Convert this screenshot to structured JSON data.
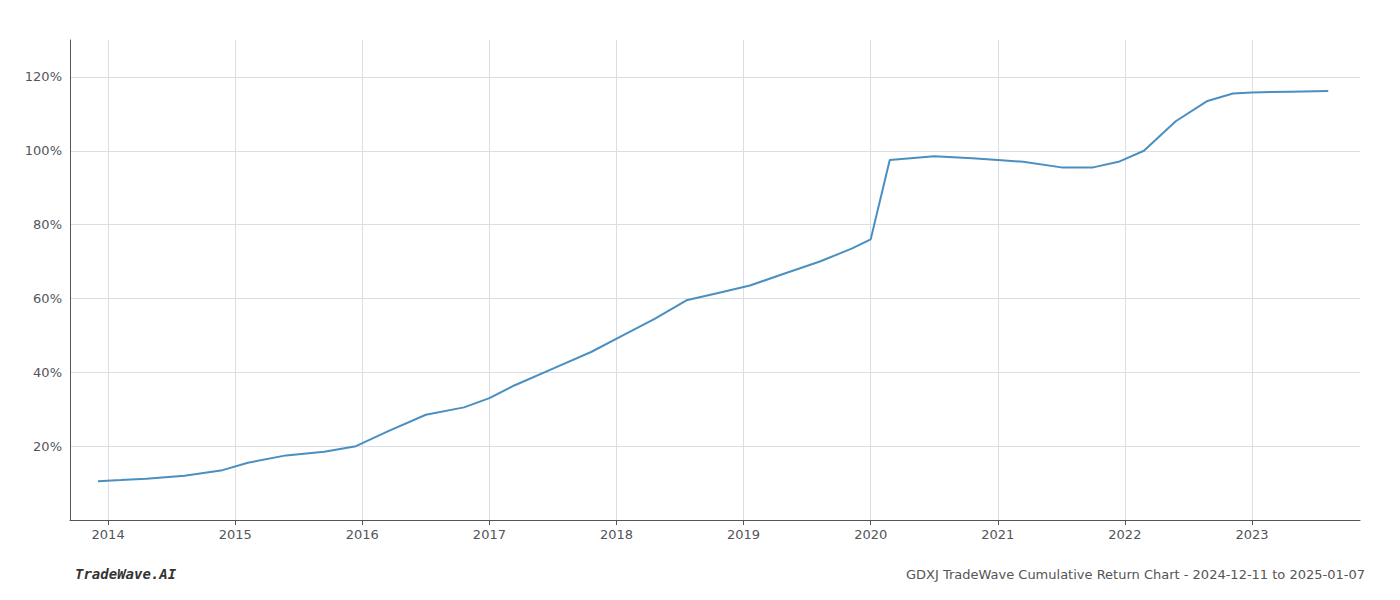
{
  "chart_data": {
    "type": "line",
    "title": "GDXJ TradeWave Cumulative Return Chart - 2024-12-11 to 2025-01-07",
    "annotations": [
      "TradeWave.AI"
    ],
    "x": [
      2013.92,
      2014.1,
      2014.3,
      2014.6,
      2014.9,
      2015.1,
      2015.4,
      2015.7,
      2015.95,
      2016.2,
      2016.5,
      2016.8,
      2017.0,
      2017.2,
      2017.5,
      2017.8,
      2018.05,
      2018.3,
      2018.55,
      2018.8,
      2019.05,
      2019.3,
      2019.6,
      2019.85,
      2020.0,
      2020.15,
      2020.5,
      2020.8,
      2021.0,
      2021.2,
      2021.5,
      2021.75,
      2021.95,
      2022.15,
      2022.4,
      2022.65,
      2022.85,
      2023.0,
      2023.3,
      2023.6
    ],
    "values": [
      10.5,
      10.8,
      11.2,
      12.0,
      13.5,
      15.5,
      17.5,
      18.5,
      20.0,
      24.0,
      28.5,
      30.5,
      33.0,
      36.5,
      41.0,
      45.5,
      50.0,
      54.5,
      59.5,
      61.5,
      63.5,
      66.5,
      70.0,
      73.5,
      76.0,
      97.5,
      98.5,
      98.0,
      97.5,
      97.0,
      95.5,
      95.5,
      97.0,
      100.0,
      108.0,
      113.5,
      115.5,
      115.8,
      116.0,
      116.2
    ],
    "color": "#4a8fc0",
    "xlim": [
      2013.7,
      2023.85
    ],
    "ylim": [
      0,
      130
    ],
    "xticks": [
      2014,
      2015,
      2016,
      2017,
      2018,
      2019,
      2020,
      2021,
      2022,
      2023
    ],
    "yticks": [
      {
        "value": 20,
        "label": "20%"
      },
      {
        "value": 40,
        "label": "40%"
      },
      {
        "value": 60,
        "label": "60%"
      },
      {
        "value": 80,
        "label": "80%"
      },
      {
        "value": 100,
        "label": "100%"
      },
      {
        "value": 120,
        "label": "120%"
      }
    ],
    "grid": true
  }
}
